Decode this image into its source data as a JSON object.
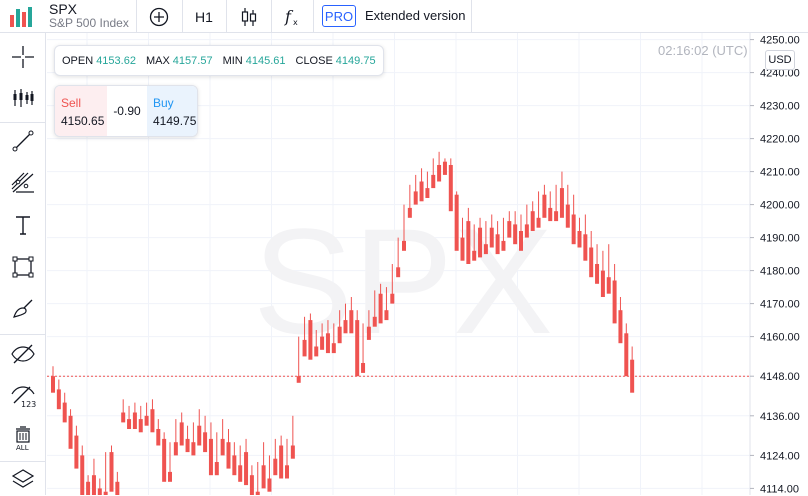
{
  "header": {
    "symbol": "SPX",
    "symbol_name": "S&P 500 Index",
    "timeframe": "H1",
    "pro_badge": "PRO",
    "extended_label": "Extended version"
  },
  "ohlc": {
    "open_label": "OPEN",
    "open": "4153.62",
    "max_label": "MAX",
    "max": "4157.57",
    "min_label": "MIN",
    "min": "4145.61",
    "close_label": "CLOSE",
    "close": "4149.75"
  },
  "trade": {
    "sell_label": "Sell",
    "sell_price": "4150.65",
    "spread": "-0.90",
    "buy_label": "Buy",
    "buy_price": "4149.75"
  },
  "clock": "02:16:02 (UTC)",
  "currency": "USD",
  "watermark": "SPX",
  "colors": {
    "up": "#26a69a",
    "down": "#ef5350",
    "accent": "#2962ff",
    "price_line": "#ef5350"
  },
  "sidebar_icons": [
    "crosshair-icon",
    "indicators-icon",
    "trend-line-icon",
    "fib-tools-icon",
    "text-tool-icon",
    "rectangle-tool-icon",
    "brush-tool-icon",
    "hide-drawings-icon",
    "hide-indicators-icon",
    "remove-all-icon",
    "layers-icon"
  ],
  "chart_data": {
    "type": "candlestick",
    "symbol": "SPX",
    "interval": "H1",
    "y_axis_ticks": [
      "4250.00",
      "4240.00",
      "4230.00",
      "4220.00",
      "4210.00",
      "4200.00",
      "4190.00",
      "4180.00",
      "4170.00",
      "4160.00",
      "4148.00",
      "4136.00",
      "4124.00",
      "4114.00"
    ],
    "current_price": "4148.00",
    "ylim": [
      4112,
      4252
    ],
    "candles": [
      [
        4148,
        4151,
        4145,
        4143
      ],
      [
        4144,
        4147,
        4140,
        4138
      ],
      [
        4140,
        4143,
        4136,
        4134
      ],
      [
        4136,
        4138,
        4130,
        4126
      ],
      [
        4130,
        4133,
        4124,
        4120
      ],
      [
        4124,
        4127,
        4117,
        4112
      ],
      [
        4116,
        4118,
        4113,
        4111
      ],
      [
        4118,
        4123,
        4115,
        4112
      ],
      [
        4114,
        4117,
        4111,
        4110
      ],
      [
        4113,
        4125,
        4113,
        4111
      ],
      [
        4125,
        4127,
        4115,
        4113
      ],
      [
        4116,
        4119,
        4113,
        4111
      ],
      [
        4137,
        4141,
        4136,
        4134
      ],
      [
        4135,
        4139,
        4133,
        4132
      ],
      [
        4137,
        4140,
        4134,
        4132
      ],
      [
        4135,
        4139,
        4133,
        4131
      ],
      [
        4136,
        4140,
        4135,
        4133
      ],
      [
        4138,
        4141,
        4132,
        4131
      ],
      [
        4132,
        4135,
        4129,
        4127
      ],
      [
        4129,
        4131,
        4118,
        4116
      ],
      [
        4119,
        4128,
        4118,
        4116
      ],
      [
        4128,
        4135,
        4126,
        4124
      ],
      [
        4134,
        4137,
        4129,
        4127
      ],
      [
        4129,
        4133,
        4127,
        4125
      ],
      [
        4128,
        4134,
        4126,
        4124
      ],
      [
        4133,
        4138,
        4129,
        4127
      ],
      [
        4131,
        4136,
        4127,
        4125
      ],
      [
        4129,
        4134,
        4120,
        4118
      ],
      [
        4122,
        4131,
        4120,
        4118
      ],
      [
        4129,
        4135,
        4126,
        4124
      ],
      [
        4128,
        4132,
        4122,
        4120
      ],
      [
        4124,
        4128,
        4120,
        4118
      ],
      [
        4121,
        4127,
        4118,
        4116
      ],
      [
        4125,
        4129,
        4117,
        4115
      ],
      [
        4118,
        4121,
        4112,
        4110
      ],
      [
        4113,
        4122,
        4112,
        4110
      ],
      [
        4121,
        4128,
        4116,
        4114
      ],
      [
        4117,
        4124,
        4115,
        4113
      ],
      [
        4123,
        4129,
        4120,
        4118
      ],
      [
        4127,
        4130,
        4119,
        4117
      ],
      [
        4121,
        4129,
        4119,
        4117
      ],
      [
        4127,
        4136,
        4125,
        4123
      ],
      [
        4148,
        4160,
        4147,
        4146
      ],
      [
        4159,
        4166,
        4157,
        4154
      ],
      [
        4165,
        4167,
        4155,
        4153
      ],
      [
        4157,
        4162,
        4156,
        4154
      ],
      [
        4160,
        4164,
        4158,
        4156
      ],
      [
        4161,
        4165,
        4157,
        4155
      ],
      [
        4158,
        4164,
        4156,
        4155
      ],
      [
        4163,
        4168,
        4160,
        4158
      ],
      [
        4165,
        4170,
        4163,
        4161
      ],
      [
        4168,
        4172,
        4163,
        4161
      ],
      [
        4165,
        4168,
        4150,
        4148
      ],
      [
        4152,
        4164,
        4151,
        4149
      ],
      [
        4163,
        4168,
        4161,
        4159
      ],
      [
        4166,
        4174,
        4165,
        4163
      ],
      [
        4173,
        4176,
        4166,
        4164
      ],
      [
        4168,
        4175,
        4167,
        4165
      ],
      [
        4173,
        4182,
        4172,
        4170
      ],
      [
        4181,
        4190,
        4180,
        4178
      ],
      [
        4189,
        4200,
        4188,
        4186
      ],
      [
        4199,
        4206,
        4198,
        4196
      ],
      [
        4204,
        4209,
        4202,
        4200
      ],
      [
        4207,
        4211,
        4203,
        4201
      ],
      [
        4205,
        4210,
        4204,
        4202
      ],
      [
        4209,
        4214,
        4207,
        4205
      ],
      [
        4212,
        4216,
        4209,
        4207
      ],
      [
        4213,
        4214,
        4211,
        4209
      ],
      [
        4212,
        4214,
        4200,
        4198
      ],
      [
        4203,
        4204,
        4188,
        4186
      ],
      [
        4190,
        4196,
        4185,
        4183
      ],
      [
        4195,
        4199,
        4184,
        4182
      ],
      [
        4186,
        4194,
        4185,
        4183
      ],
      [
        4193,
        4196,
        4186,
        4184
      ],
      [
        4188,
        4195,
        4187,
        4185
      ],
      [
        4193,
        4197,
        4189,
        4187
      ],
      [
        4191,
        4195,
        4187,
        4185
      ],
      [
        4189,
        4196,
        4188,
        4186
      ],
      [
        4195,
        4198,
        4192,
        4190
      ],
      [
        4194,
        4198,
        4190,
        4188
      ],
      [
        4192,
        4197,
        4188,
        4186
      ],
      [
        4194,
        4200,
        4192,
        4190
      ],
      [
        4198,
        4201,
        4194,
        4192
      ],
      [
        4196,
        4204,
        4195,
        4193
      ],
      [
        4203,
        4206,
        4198,
        4196
      ],
      [
        4199,
        4204,
        4197,
        4195
      ],
      [
        4198,
        4206,
        4197,
        4195
      ],
      [
        4205,
        4210,
        4198,
        4196
      ],
      [
        4200,
        4206,
        4195,
        4193
      ],
      [
        4197,
        4203,
        4190,
        4188
      ],
      [
        4192,
        4196,
        4189,
        4187
      ],
      [
        4191,
        4197,
        4185,
        4183
      ],
      [
        4187,
        4192,
        4180,
        4178
      ],
      [
        4182,
        4188,
        4178,
        4176
      ],
      [
        4180,
        4186,
        4174,
        4172
      ],
      [
        4178,
        4188,
        4175,
        4173
      ],
      [
        4177,
        4182,
        4166,
        4164
      ],
      [
        4168,
        4172,
        4160,
        4158
      ],
      [
        4161,
        4164,
        4150,
        4148
      ],
      [
        4153,
        4157,
        4145,
        4143
      ]
    ]
  }
}
